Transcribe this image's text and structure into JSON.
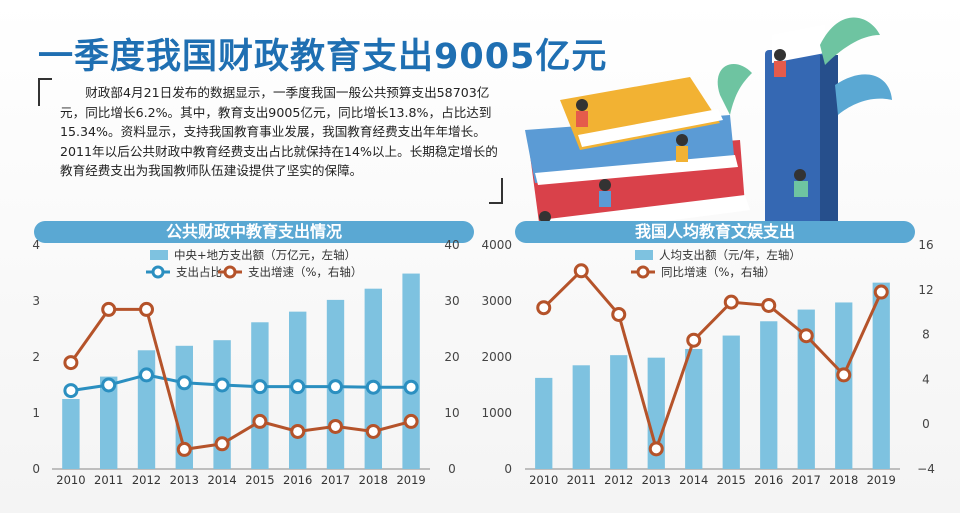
{
  "headline": "一季度我国财政教育支出9005亿元",
  "paragraph": "财政部4月21日发布的数据显示，一季度我国一般公共预算支出58703亿元，同比增长6.2%。其中，教育支出9005亿元，同比增长13.8%，占比达到15.34%。资料显示，支持我国教育事业发展，我国教育经费支出年年增长。2011年以后公共财政中教育经费支出占比就保持在14%以上。长期稳定增长的教育经费支出为我国教师队伍建设提供了坚实的保障。",
  "colors": {
    "bar": "#7ec2e0",
    "line_share": "#2b8fc0",
    "line_growth": "#b5532a",
    "banner": "#5aa8d3",
    "headline": "#1f6fb2"
  },
  "chart_data": [
    {
      "type": "bar",
      "title": "公共财政中教育支出情况",
      "categories": [
        "2010",
        "2011",
        "2012",
        "2013",
        "2014",
        "2015",
        "2016",
        "2017",
        "2018",
        "2019"
      ],
      "series": [
        {
          "name": "中央+地方支出额（万亿元，左轴）",
          "type": "bar",
          "axis": "left",
          "values": [
            1.25,
            1.65,
            2.12,
            2.2,
            2.3,
            2.62,
            2.81,
            3.02,
            3.22,
            3.49
          ]
        },
        {
          "name": "支出占比",
          "type": "line",
          "axis": "right",
          "values": [
            14.0,
            15.0,
            16.8,
            15.4,
            15.0,
            14.7,
            14.7,
            14.7,
            14.6,
            14.6
          ]
        },
        {
          "name": "支出增速（%，右轴）",
          "type": "line",
          "axis": "right",
          "values": [
            19.0,
            28.5,
            28.5,
            3.5,
            4.5,
            8.5,
            6.7,
            7.6,
            6.7,
            8.5
          ]
        }
      ],
      "yleft": {
        "ticks": [
          "0",
          "1",
          "2",
          "3",
          "4"
        ],
        "range": [
          0,
          4
        ]
      },
      "yright": {
        "ticks": [
          "0",
          "10",
          "20",
          "30",
          "40"
        ],
        "range": [
          0,
          40
        ]
      },
      "legend_position": "top"
    },
    {
      "type": "bar",
      "title": "我国人均教育文娱支出",
      "categories": [
        "2010",
        "2011",
        "2012",
        "2013",
        "2014",
        "2015",
        "2016",
        "2017",
        "2018",
        "2019"
      ],
      "series": [
        {
          "name": "人均支出额（元/年，左轴）",
          "type": "bar",
          "axis": "left",
          "values": [
            1627,
            1852,
            2033,
            1988,
            2143,
            2383,
            2638,
            2847,
            2974,
            3328
          ]
        },
        {
          "name": "同比增速（%，右轴）",
          "type": "line",
          "axis": "right",
          "values": [
            10.4,
            13.7,
            9.8,
            -2.2,
            7.5,
            10.9,
            10.6,
            7.9,
            4.4,
            11.8
          ]
        }
      ],
      "yleft": {
        "ticks": [
          "0",
          "1000",
          "2000",
          "3000",
          "4000"
        ],
        "range": [
          0,
          4000
        ]
      },
      "yright": {
        "ticks": [
          "−4",
          "0",
          "4",
          "8",
          "12",
          "16"
        ],
        "range": [
          -4,
          16
        ]
      },
      "legend_position": "top"
    }
  ]
}
